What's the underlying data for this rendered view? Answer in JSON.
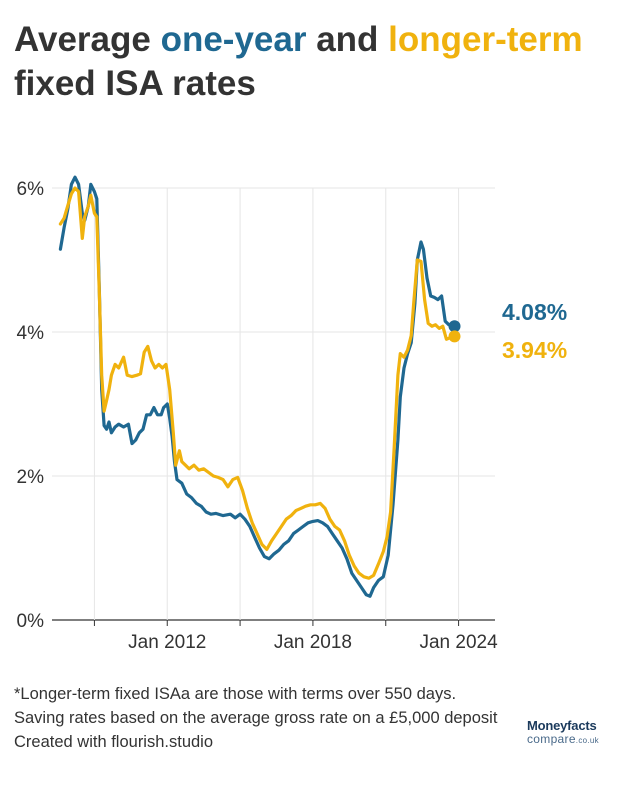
{
  "title": {
    "prefix": "Average ",
    "series_a": "one-year",
    "middle": " and ",
    "series_b": "longer-term",
    "line2": "fixed ISA rates"
  },
  "colors": {
    "one_year": "#1f6891",
    "longer_term": "#f0b20e",
    "grid": "#e6e6e6",
    "axis": "#333333"
  },
  "footer": {
    "note": "*Longer-term fixed ISAa are those with terms over 550 days.",
    "basis": "Saving rates based on the average gross rate on a £5,000 deposit",
    "credit": "Created with flourish.studio"
  },
  "logo": {
    "top": "Moneyfacts",
    "bottom": "compare",
    "suffix": ".co.uk"
  },
  "chart_data": {
    "type": "line",
    "y_ticks": [
      "0%",
      "2%",
      "4%",
      "6%"
    ],
    "x_ticks": [
      "Jan 2012",
      "Jan 2018",
      "Jan 2024"
    ],
    "ylim": [
      0,
      6.3
    ],
    "xlim": [
      2007.5,
      2025.5
    ],
    "grid": true,
    "end_labels": {
      "one_year": "4.08%",
      "longer_term": "3.94%"
    },
    "series": [
      {
        "key": "one_year",
        "points": [
          [
            2007.6,
            5.15
          ],
          [
            2007.75,
            5.45
          ],
          [
            2007.9,
            5.7
          ],
          [
            2008.05,
            6.05
          ],
          [
            2008.2,
            6.15
          ],
          [
            2008.35,
            6.05
          ],
          [
            2008.5,
            5.65
          ],
          [
            2008.6,
            5.55
          ],
          [
            2008.75,
            5.75
          ],
          [
            2008.85,
            6.05
          ],
          [
            2009.0,
            5.95
          ],
          [
            2009.1,
            5.85
          ],
          [
            2009.2,
            4.6
          ],
          [
            2009.3,
            3.2
          ],
          [
            2009.4,
            2.7
          ],
          [
            2009.5,
            2.65
          ],
          [
            2009.6,
            2.75
          ],
          [
            2009.7,
            2.6
          ],
          [
            2009.85,
            2.68
          ],
          [
            2010.0,
            2.72
          ],
          [
            2010.2,
            2.68
          ],
          [
            2010.4,
            2.72
          ],
          [
            2010.55,
            2.45
          ],
          [
            2010.7,
            2.5
          ],
          [
            2010.85,
            2.6
          ],
          [
            2011.0,
            2.65
          ],
          [
            2011.15,
            2.85
          ],
          [
            2011.3,
            2.85
          ],
          [
            2011.45,
            2.95
          ],
          [
            2011.6,
            2.85
          ],
          [
            2011.75,
            2.85
          ],
          [
            2011.85,
            2.95
          ],
          [
            2012.0,
            3.0
          ],
          [
            2012.1,
            2.8
          ],
          [
            2012.2,
            2.55
          ],
          [
            2012.3,
            2.2
          ],
          [
            2012.4,
            1.95
          ],
          [
            2012.6,
            1.9
          ],
          [
            2012.8,
            1.75
          ],
          [
            2013.0,
            1.7
          ],
          [
            2013.2,
            1.62
          ],
          [
            2013.4,
            1.58
          ],
          [
            2013.6,
            1.5
          ],
          [
            2013.8,
            1.47
          ],
          [
            2014.0,
            1.48
          ],
          [
            2014.3,
            1.45
          ],
          [
            2014.6,
            1.47
          ],
          [
            2014.8,
            1.42
          ],
          [
            2015.0,
            1.47
          ],
          [
            2015.2,
            1.4
          ],
          [
            2015.4,
            1.3
          ],
          [
            2015.6,
            1.15
          ],
          [
            2015.8,
            1.0
          ],
          [
            2016.0,
            0.88
          ],
          [
            2016.2,
            0.85
          ],
          [
            2016.4,
            0.92
          ],
          [
            2016.6,
            0.97
          ],
          [
            2016.8,
            1.05
          ],
          [
            2017.0,
            1.1
          ],
          [
            2017.2,
            1.2
          ],
          [
            2017.4,
            1.25
          ],
          [
            2017.6,
            1.3
          ],
          [
            2017.8,
            1.35
          ],
          [
            2018.0,
            1.37
          ],
          [
            2018.2,
            1.38
          ],
          [
            2018.4,
            1.35
          ],
          [
            2018.6,
            1.3
          ],
          [
            2018.8,
            1.2
          ],
          [
            2019.0,
            1.1
          ],
          [
            2019.2,
            1.0
          ],
          [
            2019.4,
            0.85
          ],
          [
            2019.6,
            0.65
          ],
          [
            2019.8,
            0.55
          ],
          [
            2020.0,
            0.45
          ],
          [
            2020.2,
            0.35
          ],
          [
            2020.35,
            0.33
          ],
          [
            2020.5,
            0.45
          ],
          [
            2020.7,
            0.55
          ],
          [
            2020.9,
            0.6
          ],
          [
            2021.1,
            0.9
          ],
          [
            2021.3,
            1.6
          ],
          [
            2021.5,
            2.5
          ],
          [
            2021.6,
            3.1
          ],
          [
            2021.75,
            3.5
          ],
          [
            2021.9,
            3.7
          ],
          [
            2022.05,
            3.85
          ],
          [
            2022.2,
            4.4
          ],
          [
            2022.3,
            5.0
          ],
          [
            2022.45,
            5.25
          ],
          [
            2022.55,
            5.15
          ],
          [
            2022.7,
            4.75
          ],
          [
            2022.85,
            4.5
          ],
          [
            2023.0,
            4.48
          ],
          [
            2023.15,
            4.45
          ],
          [
            2023.3,
            4.5
          ],
          [
            2023.45,
            4.15
          ],
          [
            2023.6,
            4.1
          ],
          [
            2023.75,
            4.08
          ]
        ]
      },
      {
        "key": "longer_term",
        "points": [
          [
            2007.6,
            5.5
          ],
          [
            2007.75,
            5.58
          ],
          [
            2007.9,
            5.75
          ],
          [
            2008.05,
            5.92
          ],
          [
            2008.2,
            6.0
          ],
          [
            2008.35,
            5.95
          ],
          [
            2008.5,
            5.3
          ],
          [
            2008.6,
            5.6
          ],
          [
            2008.75,
            5.75
          ],
          [
            2008.85,
            5.9
          ],
          [
            2009.0,
            5.65
          ],
          [
            2009.1,
            5.6
          ],
          [
            2009.2,
            4.55
          ],
          [
            2009.3,
            3.4
          ],
          [
            2009.4,
            2.9
          ],
          [
            2009.5,
            3.05
          ],
          [
            2009.6,
            3.2
          ],
          [
            2009.7,
            3.4
          ],
          [
            2009.85,
            3.55
          ],
          [
            2010.0,
            3.5
          ],
          [
            2010.2,
            3.65
          ],
          [
            2010.35,
            3.4
          ],
          [
            2010.55,
            3.38
          ],
          [
            2010.75,
            3.4
          ],
          [
            2010.9,
            3.42
          ],
          [
            2011.05,
            3.72
          ],
          [
            2011.2,
            3.8
          ],
          [
            2011.35,
            3.6
          ],
          [
            2011.5,
            3.5
          ],
          [
            2011.65,
            3.55
          ],
          [
            2011.8,
            3.5
          ],
          [
            2011.95,
            3.55
          ],
          [
            2012.1,
            3.2
          ],
          [
            2012.25,
            2.6
          ],
          [
            2012.35,
            2.15
          ],
          [
            2012.5,
            2.35
          ],
          [
            2012.6,
            2.2
          ],
          [
            2012.75,
            2.15
          ],
          [
            2012.9,
            2.1
          ],
          [
            2013.1,
            2.15
          ],
          [
            2013.3,
            2.08
          ],
          [
            2013.5,
            2.1
          ],
          [
            2013.7,
            2.05
          ],
          [
            2013.9,
            2.0
          ],
          [
            2014.1,
            1.98
          ],
          [
            2014.3,
            1.95
          ],
          [
            2014.5,
            1.85
          ],
          [
            2014.7,
            1.95
          ],
          [
            2014.9,
            1.98
          ],
          [
            2015.1,
            1.8
          ],
          [
            2015.3,
            1.55
          ],
          [
            2015.5,
            1.35
          ],
          [
            2015.7,
            1.2
          ],
          [
            2015.9,
            1.05
          ],
          [
            2016.1,
            0.98
          ],
          [
            2016.3,
            1.1
          ],
          [
            2016.5,
            1.2
          ],
          [
            2016.7,
            1.3
          ],
          [
            2016.9,
            1.4
          ],
          [
            2017.1,
            1.45
          ],
          [
            2017.3,
            1.52
          ],
          [
            2017.5,
            1.55
          ],
          [
            2017.7,
            1.58
          ],
          [
            2017.9,
            1.6
          ],
          [
            2018.1,
            1.6
          ],
          [
            2018.3,
            1.62
          ],
          [
            2018.5,
            1.55
          ],
          [
            2018.7,
            1.4
          ],
          [
            2018.9,
            1.3
          ],
          [
            2019.1,
            1.25
          ],
          [
            2019.3,
            1.1
          ],
          [
            2019.5,
            0.9
          ],
          [
            2019.7,
            0.75
          ],
          [
            2019.9,
            0.65
          ],
          [
            2020.1,
            0.6
          ],
          [
            2020.3,
            0.58
          ],
          [
            2020.5,
            0.62
          ],
          [
            2020.7,
            0.78
          ],
          [
            2020.9,
            0.95
          ],
          [
            2021.05,
            1.15
          ],
          [
            2021.2,
            1.5
          ],
          [
            2021.35,
            2.4
          ],
          [
            2021.5,
            3.4
          ],
          [
            2021.6,
            3.7
          ],
          [
            2021.75,
            3.65
          ],
          [
            2021.9,
            3.75
          ],
          [
            2022.05,
            3.95
          ],
          [
            2022.15,
            4.4
          ],
          [
            2022.3,
            5.0
          ],
          [
            2022.45,
            4.98
          ],
          [
            2022.6,
            4.45
          ],
          [
            2022.75,
            4.12
          ],
          [
            2022.9,
            4.08
          ],
          [
            2023.05,
            4.1
          ],
          [
            2023.2,
            4.05
          ],
          [
            2023.35,
            4.08
          ],
          [
            2023.5,
            3.9
          ],
          [
            2023.65,
            3.92
          ],
          [
            2023.75,
            3.94
          ]
        ]
      }
    ]
  }
}
